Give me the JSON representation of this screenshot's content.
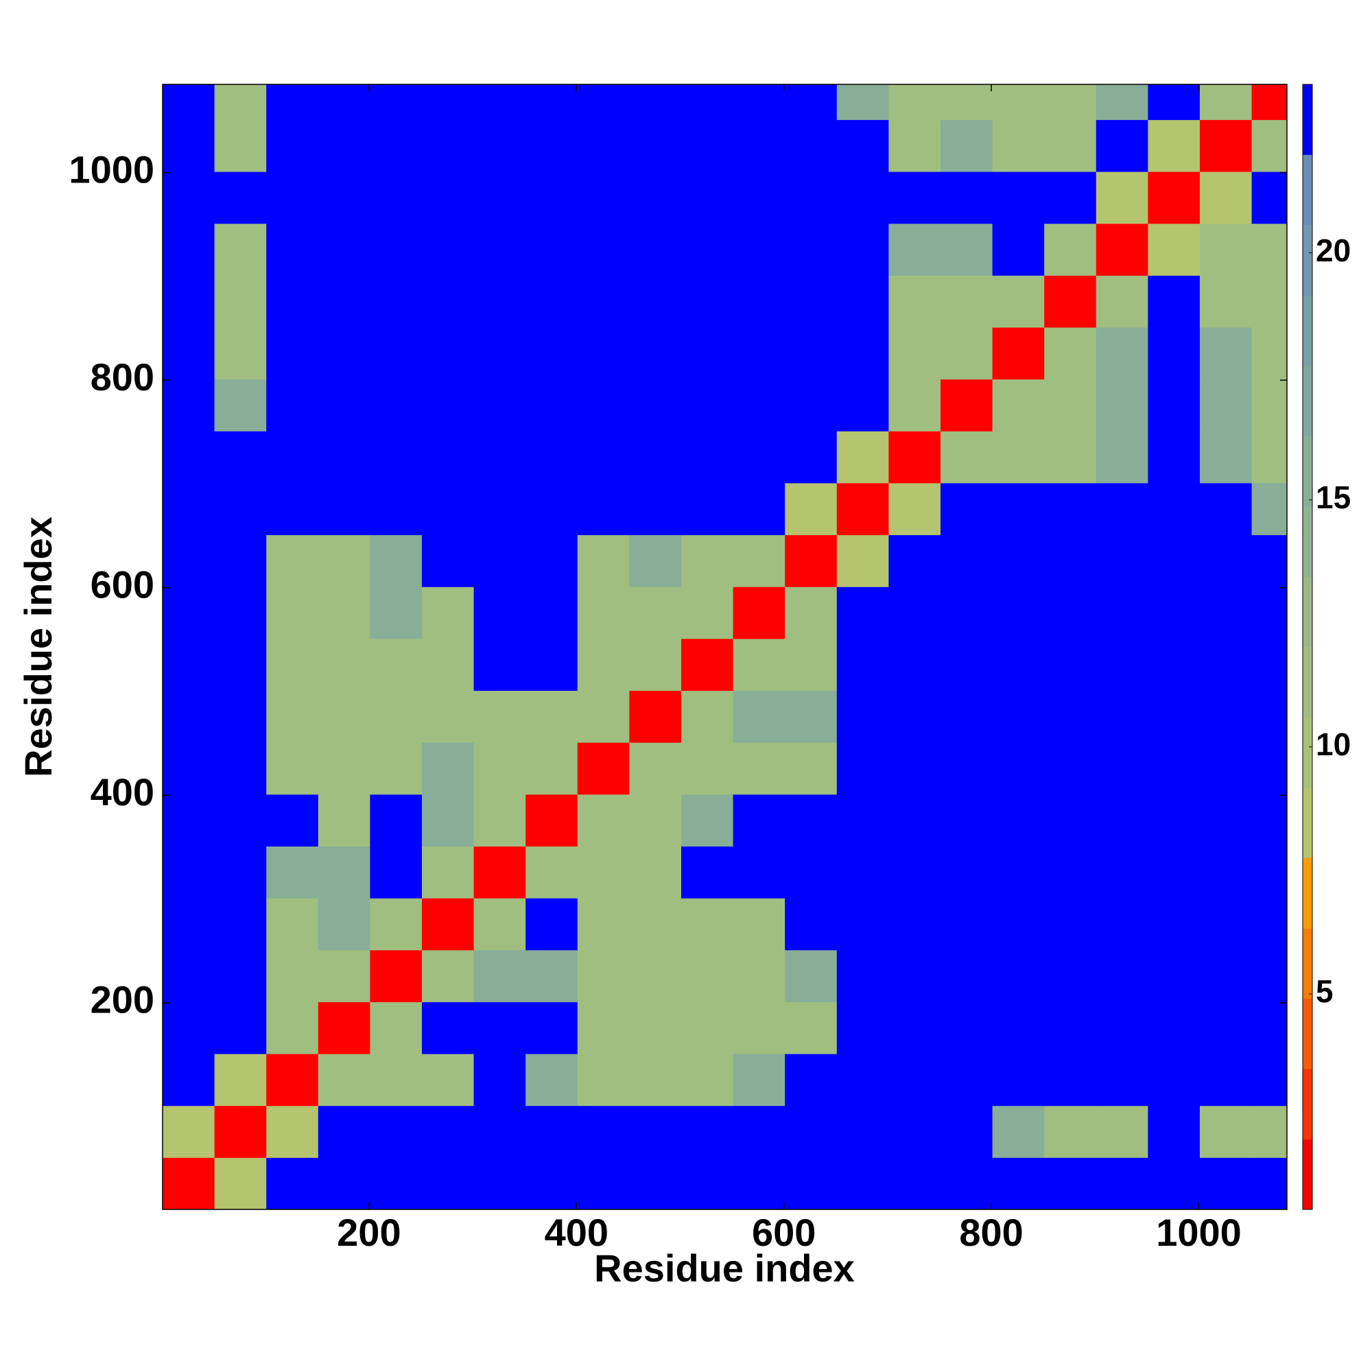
{
  "chart_data": {
    "type": "heatmap",
    "xlabel": "Residue index",
    "ylabel": "Residue index",
    "xlim": [
      1,
      1085
    ],
    "ylim": [
      1,
      1085
    ],
    "xticks": [
      200,
      400,
      600,
      800,
      1000
    ],
    "yticks": [
      200,
      400,
      600,
      800,
      1000
    ],
    "x_edges": [
      1,
      51,
      101,
      151,
      201,
      251,
      301,
      351,
      401,
      451,
      501,
      551,
      601,
      651,
      701,
      751,
      801,
      851,
      901,
      951,
      1001,
      1051,
      1085
    ],
    "y_edges": [
      1,
      51,
      101,
      151,
      201,
      251,
      301,
      351,
      401,
      451,
      501,
      551,
      601,
      651,
      701,
      751,
      801,
      851,
      901,
      951,
      1001,
      1051,
      1085
    ],
    "z": [
      [
        1.5,
        9,
        23,
        23,
        23,
        23,
        23,
        23,
        23,
        23,
        23,
        23,
        23,
        23,
        23,
        23,
        23,
        23,
        23,
        23,
        23,
        23
      ],
      [
        9,
        1.5,
        9,
        23,
        23,
        23,
        23,
        23,
        23,
        23,
        23,
        23,
        23,
        23,
        23,
        23,
        16,
        12,
        12,
        23,
        12,
        12
      ],
      [
        23,
        9,
        1.5,
        12,
        12,
        12,
        23,
        16,
        12,
        12,
        12,
        16,
        23,
        23,
        23,
        23,
        23,
        23,
        23,
        23,
        23,
        23
      ],
      [
        23,
        23,
        12,
        1.5,
        12,
        23,
        23,
        23,
        12,
        12,
        12,
        12,
        12,
        23,
        23,
        23,
        23,
        23,
        23,
        23,
        23,
        23
      ],
      [
        23,
        23,
        12,
        12,
        1.5,
        12,
        16,
        16,
        12,
        12,
        12,
        12,
        16,
        23,
        23,
        23,
        23,
        23,
        23,
        23,
        23,
        23
      ],
      [
        23,
        23,
        12,
        16,
        12,
        1.5,
        12,
        23,
        12,
        12,
        12,
        12,
        23,
        23,
        23,
        23,
        23,
        23,
        23,
        23,
        23,
        23
      ],
      [
        23,
        23,
        16,
        16,
        23,
        12,
        1.5,
        12,
        12,
        12,
        23,
        23,
        23,
        23,
        23,
        23,
        23,
        23,
        23,
        23,
        23,
        23
      ],
      [
        23,
        23,
        23,
        12,
        23,
        16,
        12,
        1.5,
        12,
        12,
        16,
        23,
        23,
        23,
        23,
        23,
        23,
        23,
        23,
        23,
        23,
        23
      ],
      [
        23,
        23,
        12,
        12,
        12,
        16,
        12,
        12,
        1.5,
        12,
        12,
        12,
        12,
        23,
        23,
        23,
        23,
        23,
        23,
        23,
        23,
        23
      ],
      [
        23,
        23,
        12,
        12,
        12,
        12,
        12,
        12,
        12,
        1.5,
        12,
        16,
        16,
        23,
        23,
        23,
        23,
        23,
        23,
        23,
        23,
        23
      ],
      [
        23,
        23,
        12,
        12,
        12,
        12,
        23,
        23,
        12,
        12,
        1.5,
        12,
        12,
        23,
        23,
        23,
        23,
        23,
        23,
        23,
        23,
        23
      ],
      [
        23,
        23,
        12,
        12,
        16,
        12,
        23,
        23,
        12,
        12,
        12,
        1.5,
        12,
        23,
        23,
        23,
        23,
        23,
        23,
        23,
        23,
        23
      ],
      [
        23,
        23,
        12,
        12,
        16,
        23,
        23,
        23,
        12,
        16,
        12,
        12,
        1.5,
        9,
        23,
        23,
        23,
        23,
        23,
        23,
        23,
        23
      ],
      [
        23,
        23,
        23,
        23,
        23,
        23,
        23,
        23,
        23,
        23,
        23,
        23,
        9,
        1.5,
        9,
        23,
        23,
        23,
        23,
        23,
        23,
        16
      ],
      [
        23,
        23,
        23,
        23,
        23,
        23,
        23,
        23,
        23,
        23,
        23,
        23,
        23,
        9,
        1.5,
        12,
        12,
        12,
        16,
        23,
        16,
        12
      ],
      [
        23,
        16,
        23,
        23,
        23,
        23,
        23,
        23,
        23,
        23,
        23,
        23,
        23,
        23,
        12,
        1.5,
        12,
        12,
        16,
        23,
        16,
        12
      ],
      [
        23,
        12,
        23,
        23,
        23,
        23,
        23,
        23,
        23,
        23,
        23,
        23,
        23,
        23,
        12,
        12,
        1.5,
        12,
        16,
        23,
        16,
        12
      ],
      [
        23,
        12,
        23,
        23,
        23,
        23,
        23,
        23,
        23,
        23,
        23,
        23,
        23,
        23,
        12,
        12,
        12,
        1.5,
        12,
        23,
        12,
        12
      ],
      [
        23,
        12,
        23,
        23,
        23,
        23,
        23,
        23,
        23,
        23,
        23,
        23,
        23,
        23,
        16,
        16,
        23,
        12,
        1.5,
        9,
        12,
        12
      ],
      [
        23,
        23,
        23,
        23,
        23,
        23,
        23,
        23,
        23,
        23,
        23,
        23,
        23,
        23,
        23,
        23,
        23,
        23,
        9,
        1.5,
        9,
        23
      ],
      [
        23,
        12,
        23,
        23,
        23,
        23,
        23,
        23,
        23,
        23,
        23,
        23,
        23,
        23,
        12,
        16,
        12,
        12,
        23,
        9,
        1.5,
        12
      ],
      [
        23,
        12,
        23,
        23,
        23,
        23,
        23,
        23,
        23,
        23,
        23,
        23,
        23,
        16,
        12,
        12,
        12,
        12,
        16,
        23,
        12,
        1.5
      ]
    ],
    "colorbar": {
      "levels": [
        0.64,
        2.06,
        3.49,
        4.91,
        6.33,
        7.76,
        9.18,
        10.6,
        12.03,
        13.45,
        14.87,
        16.3,
        17.72,
        19.14,
        20.57,
        21.99,
        23.41
      ],
      "colors": [
        "#ff0000",
        "#ff3300",
        "#ff5a00",
        "#ff7a00",
        "#ff9a00",
        "#b5c46e",
        "#a8c078",
        "#a0be80",
        "#98b888",
        "#90b490",
        "#88ae98",
        "#80a8a0",
        "#78a0a8",
        "#7098b0",
        "#6890b8",
        "#0000ff"
      ],
      "ticks": [
        5,
        10,
        15,
        20
      ]
    }
  }
}
